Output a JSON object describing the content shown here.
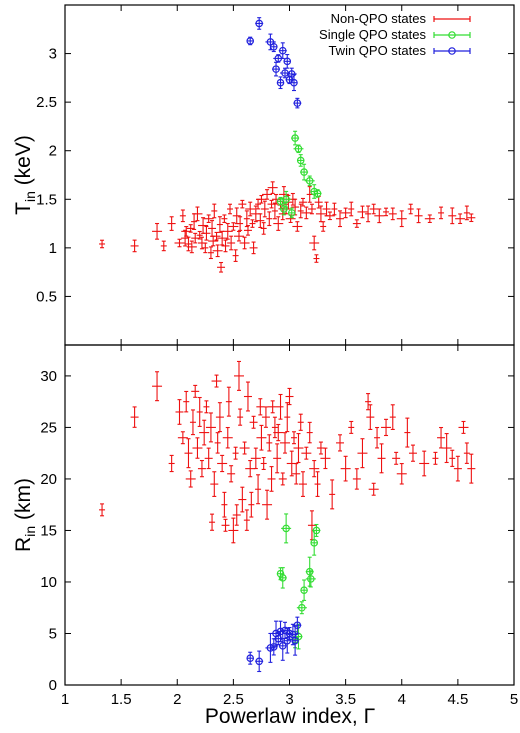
{
  "chart_data": [
    {
      "type": "scatter",
      "panel": "top",
      "xlim": [
        1,
        5
      ],
      "ylim": [
        0,
        3.5
      ],
      "y_ticks": [
        "0.5",
        "1",
        "1.5",
        "2",
        "2.5",
        "3"
      ],
      "y_tick_values": [
        0.5,
        1,
        1.5,
        2,
        2.5,
        3
      ],
      "ylabel": {
        "main": "T",
        "sub": "in",
        "unit": " (keV)"
      },
      "legend": {
        "placement": "top-right",
        "entries": [
          "Non-QPO states",
          "Single QPO states",
          "Twin QPO states"
        ]
      },
      "series": [
        {
          "name": "Non-QPO states",
          "color": "#ee1111",
          "marker": "cross-errorbar",
          "points": [
            [
              1.33,
              1.04
            ],
            [
              1.62,
              1.02
            ],
            [
              1.82,
              1.17
            ],
            [
              1.88,
              1.02
            ],
            [
              1.95,
              1.25
            ],
            [
              2.02,
              1.05
            ],
            [
              2.05,
              1.33
            ],
            [
              2.07,
              1.1
            ],
            [
              2.08,
              1.17
            ],
            [
              2.1,
              1.04
            ],
            [
              2.12,
              1.2
            ],
            [
              2.13,
              1.01
            ],
            [
              2.15,
              1.27
            ],
            [
              2.16,
              1.1
            ],
            [
              2.18,
              1.35
            ],
            [
              2.2,
              1.13
            ],
            [
              2.22,
              1.05
            ],
            [
              2.23,
              1.23
            ],
            [
              2.25,
              1.0
            ],
            [
              2.26,
              1.15
            ],
            [
              2.28,
              1.3
            ],
            [
              2.3,
              0.95
            ],
            [
              2.31,
              1.2
            ],
            [
              2.32,
              1.07
            ],
            [
              2.33,
              1.38
            ],
            [
              2.35,
              1.12
            ],
            [
              2.36,
              0.97
            ],
            [
              2.38,
              1.24
            ],
            [
              2.39,
              0.8
            ],
            [
              2.4,
              1.1
            ],
            [
              2.42,
              1.3
            ],
            [
              2.43,
              1.02
            ],
            [
              2.45,
              1.17
            ],
            [
              2.47,
              1.4
            ],
            [
              2.48,
              1.05
            ],
            [
              2.5,
              1.22
            ],
            [
              2.52,
              0.92
            ],
            [
              2.53,
              1.33
            ],
            [
              2.55,
              1.12
            ],
            [
              2.56,
              1.25
            ],
            [
              2.58,
              1.45
            ],
            [
              2.6,
              1.05
            ],
            [
              2.62,
              1.3
            ],
            [
              2.63,
              1.18
            ],
            [
              2.65,
              1.4
            ],
            [
              2.67,
              1.25
            ],
            [
              2.68,
              1.0
            ],
            [
              2.7,
              1.35
            ],
            [
              2.72,
              1.45
            ],
            [
              2.74,
              1.28
            ],
            [
              2.75,
              1.5
            ],
            [
              2.77,
              1.2
            ],
            [
              2.78,
              1.4
            ],
            [
              2.8,
              1.55
            ],
            [
              2.82,
              1.3
            ],
            [
              2.84,
              1.45
            ],
            [
              2.85,
              1.62
            ],
            [
              2.87,
              1.38
            ],
            [
              2.88,
              1.5
            ],
            [
              2.9,
              1.25
            ],
            [
              2.92,
              1.44
            ],
            [
              2.94,
              1.35
            ],
            [
              2.95,
              1.55
            ],
            [
              2.97,
              1.4
            ],
            [
              2.99,
              1.47
            ],
            [
              3.01,
              1.3
            ],
            [
              3.03,
              1.5
            ],
            [
              3.05,
              1.42
            ],
            [
              3.07,
              1.22
            ],
            [
              3.1,
              1.38
            ],
            [
              3.12,
              1.47
            ],
            [
              3.15,
              1.36
            ],
            [
              3.18,
              1.55
            ],
            [
              3.2,
              1.4
            ],
            [
              3.22,
              1.05
            ],
            [
              3.24,
              0.89
            ],
            [
              3.26,
              1.47
            ],
            [
              3.28,
              1.35
            ],
            [
              3.3,
              1.22
            ],
            [
              3.33,
              1.4
            ],
            [
              3.36,
              1.33
            ],
            [
              3.4,
              1.4
            ],
            [
              3.45,
              1.3
            ],
            [
              3.5,
              1.36
            ],
            [
              3.55,
              1.4
            ],
            [
              3.6,
              1.25
            ],
            [
              3.65,
              1.37
            ],
            [
              3.7,
              1.35
            ],
            [
              3.75,
              1.4
            ],
            [
              3.8,
              1.33
            ],
            [
              3.86,
              1.37
            ],
            [
              3.92,
              1.35
            ],
            [
              4.0,
              1.3
            ],
            [
              4.08,
              1.4
            ],
            [
              4.15,
              1.33
            ],
            [
              4.25,
              1.3
            ],
            [
              4.35,
              1.36
            ],
            [
              4.45,
              1.33
            ],
            [
              4.52,
              1.3
            ],
            [
              4.58,
              1.36
            ],
            [
              4.62,
              1.31
            ]
          ]
        },
        {
          "name": "Single QPO states",
          "color": "#33dd33",
          "marker": "circle-errorbar",
          "points": [
            [
              2.92,
              1.48
            ],
            [
              2.95,
              1.4
            ],
            [
              2.97,
              1.5
            ],
            [
              3.02,
              1.36
            ],
            [
              3.05,
              2.13
            ],
            [
              3.08,
              2.02
            ],
            [
              3.1,
              1.9
            ],
            [
              3.13,
              1.78
            ],
            [
              3.18,
              1.69
            ],
            [
              3.22,
              1.58
            ],
            [
              3.25,
              1.56
            ]
          ]
        },
        {
          "name": "Twin QPO states",
          "color": "#2222dd",
          "marker": "circle-errorbar",
          "points": [
            [
              2.65,
              3.13
            ],
            [
              2.73,
              3.31
            ],
            [
              2.83,
              3.12
            ],
            [
              2.86,
              3.07
            ],
            [
              2.88,
              2.84
            ],
            [
              2.9,
              2.95
            ],
            [
              2.92,
              2.7
            ],
            [
              2.94,
              3.03
            ],
            [
              2.96,
              2.8
            ],
            [
              2.98,
              2.92
            ],
            [
              3.0,
              2.73
            ],
            [
              3.02,
              2.79
            ],
            [
              3.04,
              2.7
            ],
            [
              3.07,
              2.49
            ]
          ]
        }
      ]
    },
    {
      "type": "scatter",
      "panel": "bottom",
      "xlim": [
        1,
        5
      ],
      "ylim": [
        0,
        33
      ],
      "x_ticks": [
        "1",
        "1.5",
        "2",
        "2.5",
        "3",
        "3.5",
        "4",
        "4.5",
        "5"
      ],
      "x_tick_values": [
        1,
        1.5,
        2,
        2.5,
        3,
        3.5,
        4,
        4.5,
        5
      ],
      "y_ticks": [
        "0",
        "5",
        "10",
        "15",
        "20",
        "25",
        "30"
      ],
      "y_tick_values": [
        0,
        5,
        10,
        15,
        20,
        25,
        30
      ],
      "xlabel": "Powerlaw index, Γ",
      "ylabel": {
        "main": "R",
        "sub": "in",
        "unit": " (km)"
      },
      "series": [
        {
          "name": "Non-QPO states",
          "color": "#ee1111",
          "marker": "cross-errorbar",
          "points": [
            [
              1.33,
              17.0
            ],
            [
              1.62,
              26.0
            ],
            [
              1.82,
              29.0
            ],
            [
              1.95,
              21.5
            ],
            [
              2.02,
              26.5
            ],
            [
              2.05,
              24.0
            ],
            [
              2.08,
              27.5
            ],
            [
              2.1,
              22.5
            ],
            [
              2.12,
              20.0
            ],
            [
              2.14,
              25.5
            ],
            [
              2.16,
              28.5
            ],
            [
              2.18,
              23.0
            ],
            [
              2.2,
              26.5
            ],
            [
              2.22,
              21.0
            ],
            [
              2.24,
              24.5
            ],
            [
              2.26,
              27.0
            ],
            [
              2.28,
              22.0
            ],
            [
              2.3,
              25.0
            ],
            [
              2.31,
              15.8
            ],
            [
              2.33,
              19.5
            ],
            [
              2.35,
              29.5
            ],
            [
              2.36,
              23.5
            ],
            [
              2.38,
              26.0
            ],
            [
              2.4,
              21.5
            ],
            [
              2.42,
              17.5
            ],
            [
              2.43,
              15.5
            ],
            [
              2.45,
              24.0
            ],
            [
              2.46,
              27.5
            ],
            [
              2.48,
              20.5
            ],
            [
              2.5,
              15.0
            ],
            [
              2.52,
              22.5
            ],
            [
              2.53,
              16.5
            ],
            [
              2.55,
              30.0
            ],
            [
              2.56,
              26.0
            ],
            [
              2.58,
              18.0
            ],
            [
              2.6,
              23.0
            ],
            [
              2.62,
              16.0
            ],
            [
              2.63,
              28.0
            ],
            [
              2.65,
              21.0
            ],
            [
              2.66,
              17.5
            ],
            [
              2.68,
              25.5
            ],
            [
              2.7,
              22.0
            ],
            [
              2.72,
              19.0
            ],
            [
              2.74,
              27.0
            ],
            [
              2.75,
              24.0
            ],
            [
              2.77,
              21.5
            ],
            [
              2.79,
              26.0
            ],
            [
              2.8,
              17.5
            ],
            [
              2.82,
              23.5
            ],
            [
              2.84,
              20.0
            ],
            [
              2.85,
              27.0
            ],
            [
              2.87,
              25.0
            ],
            [
              2.89,
              22.0
            ],
            [
              2.9,
              24.5
            ],
            [
              2.92,
              27.0
            ],
            [
              2.94,
              20.0
            ],
            [
              2.96,
              23.5
            ],
            [
              2.98,
              26.0
            ],
            [
              3.0,
              28.0
            ],
            [
              3.02,
              21.5
            ],
            [
              3.04,
              24.0
            ],
            [
              3.06,
              20.5
            ],
            [
              3.08,
              23.0
            ],
            [
              3.1,
              25.5
            ],
            [
              3.12,
              19.5
            ],
            [
              3.15,
              22.5
            ],
            [
              3.18,
              24.5
            ],
            [
              3.2,
              15.5
            ],
            [
              3.22,
              21.0
            ],
            [
              3.25,
              19.5
            ],
            [
              3.28,
              23.0
            ],
            [
              3.32,
              22.0
            ],
            [
              3.38,
              18.5
            ],
            [
              3.45,
              23.5
            ],
            [
              3.5,
              21.0
            ],
            [
              3.55,
              25.0
            ],
            [
              3.6,
              20.0
            ],
            [
              3.65,
              22.5
            ],
            [
              3.7,
              27.5
            ],
            [
              3.72,
              26.0
            ],
            [
              3.75,
              19.0
            ],
            [
              3.78,
              24.0
            ],
            [
              3.82,
              22.0
            ],
            [
              3.86,
              25.0
            ],
            [
              3.92,
              26.0
            ],
            [
              3.95,
              22.0
            ],
            [
              4.0,
              20.5
            ],
            [
              4.05,
              24.5
            ],
            [
              4.1,
              22.5
            ],
            [
              4.2,
              21.5
            ],
            [
              4.3,
              22.0
            ],
            [
              4.35,
              24.0
            ],
            [
              4.4,
              23.0
            ],
            [
              4.45,
              22.0
            ],
            [
              4.5,
              21.0
            ],
            [
              4.55,
              25.0
            ],
            [
              4.58,
              22.5
            ],
            [
              4.62,
              21.0
            ]
          ]
        },
        {
          "name": "Single QPO states",
          "color": "#33dd33",
          "marker": "circle-errorbar",
          "points": [
            [
              2.92,
              10.8
            ],
            [
              2.94,
              10.4
            ],
            [
              2.97,
              15.2
            ],
            [
              3.05,
              4.4
            ],
            [
              3.08,
              4.7
            ],
            [
              3.11,
              7.5
            ],
            [
              3.13,
              9.2
            ],
            [
              3.18,
              11.0
            ],
            [
              3.19,
              10.3
            ],
            [
              3.22,
              13.8
            ],
            [
              3.24,
              15.0
            ]
          ]
        },
        {
          "name": "Twin QPO states",
          "color": "#2222dd",
          "marker": "circle-errorbar",
          "points": [
            [
              2.65,
              2.6
            ],
            [
              2.73,
              2.3
            ],
            [
              2.83,
              3.6
            ],
            [
              2.86,
              3.7
            ],
            [
              2.88,
              5.0
            ],
            [
              2.9,
              4.5
            ],
            [
              2.92,
              5.2
            ],
            [
              2.94,
              3.8
            ],
            [
              2.96,
              5.3
            ],
            [
              2.98,
              4.3
            ],
            [
              3.0,
              5.0
            ],
            [
              3.03,
              4.9
            ],
            [
              3.05,
              4.3
            ],
            [
              3.07,
              5.8
            ]
          ]
        }
      ]
    }
  ]
}
